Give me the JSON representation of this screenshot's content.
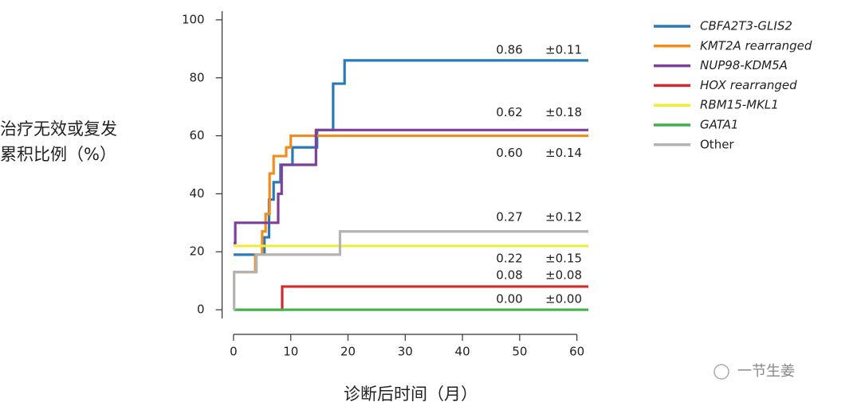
{
  "chart_data": {
    "type": "step",
    "y_label": [
      "治疗无效或复发",
      "累积比例（%）"
    ],
    "x_label": "诊断后时间（月）",
    "watermark": "一节生姜",
    "xlim": [
      -2,
      62
    ],
    "xticks": [
      0,
      10,
      20,
      30,
      40,
      50,
      60
    ],
    "ylim": [
      -3,
      103
    ],
    "yticks": [
      0,
      20,
      40,
      60,
      80,
      100
    ],
    "series": [
      {
        "name": "CBFA2T3-GLIS2",
        "color": "#2a7ab8",
        "estimate": "0.86",
        "ci": "±0.11",
        "x": [
          0,
          5.4,
          6.2,
          7,
          8.2,
          10.3,
          14.6,
          17.4,
          19.4,
          62
        ],
        "values": [
          19,
          25,
          38,
          44,
          50,
          56,
          62,
          78,
          86,
          86
        ]
      },
      {
        "name": "KMT2A rearranged",
        "color": "#f28c1e",
        "estimate": "0.60",
        "ci": "±0.14",
        "x": [
          0,
          3.8,
          5,
          5.6,
          6.3,
          7,
          9.2,
          10,
          62
        ],
        "values": [
          13,
          19,
          27,
          33,
          47,
          53,
          56,
          60,
          60
        ]
      },
      {
        "name": "NUP98-KDM5A",
        "color": "#7e3f98",
        "estimate": "0.62",
        "ci": "±0.18",
        "x": [
          0,
          0.3,
          4.8,
          7.8,
          8.4,
          14.4,
          62
        ],
        "values": [
          23,
          30,
          30,
          40,
          50,
          62,
          62
        ]
      },
      {
        "name": "HOX rearranged",
        "color": "#d42a2a",
        "estimate": "0.08",
        "ci": "±0.08",
        "x": [
          0,
          8.5,
          62
        ],
        "values": [
          0,
          8,
          8
        ]
      },
      {
        "name": "RBM15-MKL1",
        "color": "#eded3a",
        "estimate": "0.22",
        "ci": "±0.15",
        "x": [
          0,
          62
        ],
        "values": [
          22,
          22
        ]
      },
      {
        "name": "GATA1",
        "color": "#3db34a",
        "estimate": "0.00",
        "ci": "±0.00",
        "x": [
          0,
          62
        ],
        "values": [
          0,
          0
        ]
      },
      {
        "name": "Other",
        "color": "#b3b3b3",
        "estimate": "0.27",
        "ci": "±0.12",
        "x": [
          0,
          0.1,
          4,
          18.6,
          62
        ],
        "values": [
          0,
          13,
          19,
          27,
          27
        ]
      }
    ]
  }
}
